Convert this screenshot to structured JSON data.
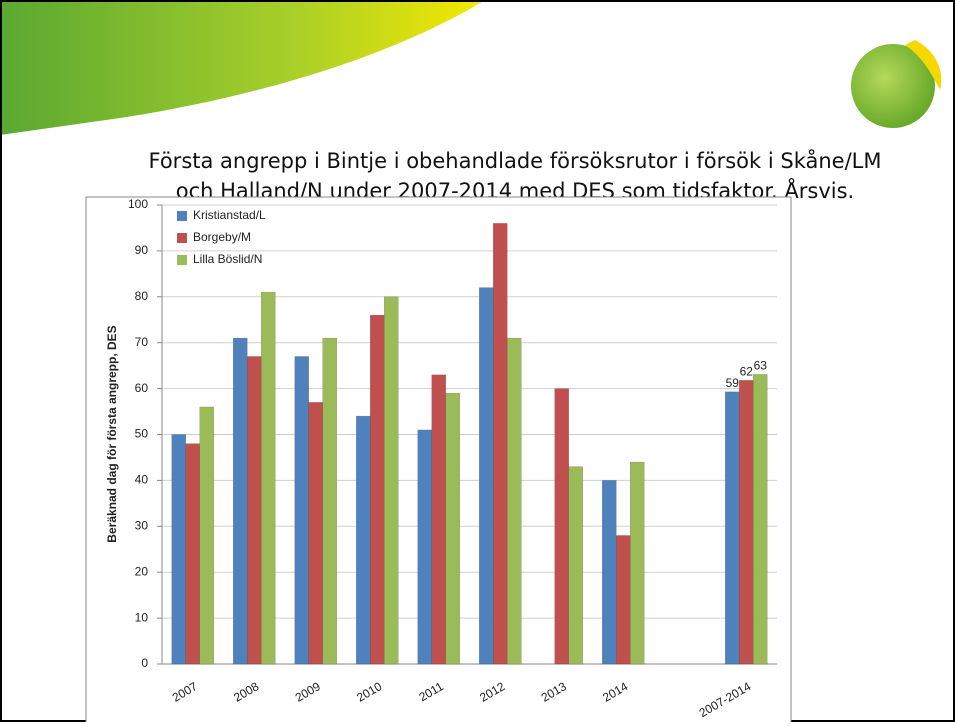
{
  "chart_data": {
    "type": "bar",
    "title": [
      "Första angrepp i Bintje i obehandlade försöksrutor i försök i Skåne/LM",
      "och Halland/N under 2007-2014 med DES som tidsfaktor. Årsvis."
    ],
    "y_label": "Beräknad dag för första angrepp, DES",
    "categories": [
      "2007",
      "2008",
      "2009",
      "2010",
      "2011",
      "2012",
      "2013",
      "2014",
      null,
      "2007-2014"
    ],
    "series": [
      {
        "name": "Kristianstad/L",
        "color": "#4f81bd",
        "values": [
          50,
          71,
          67,
          54,
          51,
          82,
          null,
          40,
          null,
          59.3
        ],
        "value_labels": [
          null,
          null,
          null,
          null,
          null,
          null,
          null,
          null,
          null,
          "59"
        ]
      },
      {
        "name": "Borgeby/M",
        "color": "#c0504d",
        "values": [
          48,
          67,
          57,
          76,
          63,
          96,
          60,
          28,
          null,
          61.8
        ],
        "value_labels": [
          null,
          null,
          null,
          null,
          null,
          null,
          null,
          null,
          null,
          "62"
        ]
      },
      {
        "name": "Lilla Böslid/N",
        "color": "#9bbb59",
        "values": [
          56,
          81,
          71,
          80,
          59,
          71,
          43,
          44,
          null,
          63.1
        ],
        "value_labels": [
          null,
          null,
          null,
          null,
          null,
          null,
          null,
          null,
          null,
          "63"
        ]
      }
    ],
    "ylim": [
      0,
      100
    ],
    "yticks": [
      0,
      10,
      20,
      30,
      40,
      50,
      60,
      70,
      80,
      90,
      100
    ],
    "grid": true,
    "legend": "top-left"
  }
}
